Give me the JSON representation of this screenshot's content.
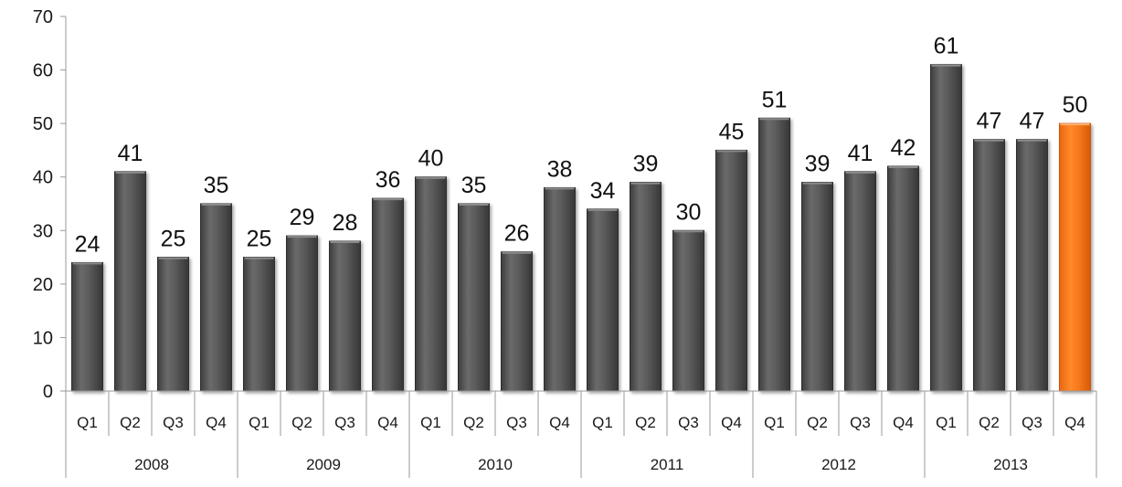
{
  "chart_data": {
    "type": "bar",
    "title": "",
    "xlabel": "",
    "ylabel": "",
    "ylim": [
      0,
      70
    ],
    "yticks": [
      0,
      10,
      20,
      30,
      40,
      50,
      60,
      70
    ],
    "grid": false,
    "legend": "none",
    "groups": [
      "2008",
      "2009",
      "2010",
      "2011",
      "2012",
      "2013"
    ],
    "quarters": [
      "Q1",
      "Q2",
      "Q3",
      "Q4"
    ],
    "values": [
      24,
      41,
      25,
      35,
      25,
      29,
      28,
      36,
      40,
      35,
      26,
      38,
      34,
      39,
      30,
      45,
      51,
      39,
      41,
      42,
      61,
      47,
      47,
      50
    ],
    "bar_color": "#595959",
    "highlight_color": "#f47920",
    "highlight_index": 23
  }
}
